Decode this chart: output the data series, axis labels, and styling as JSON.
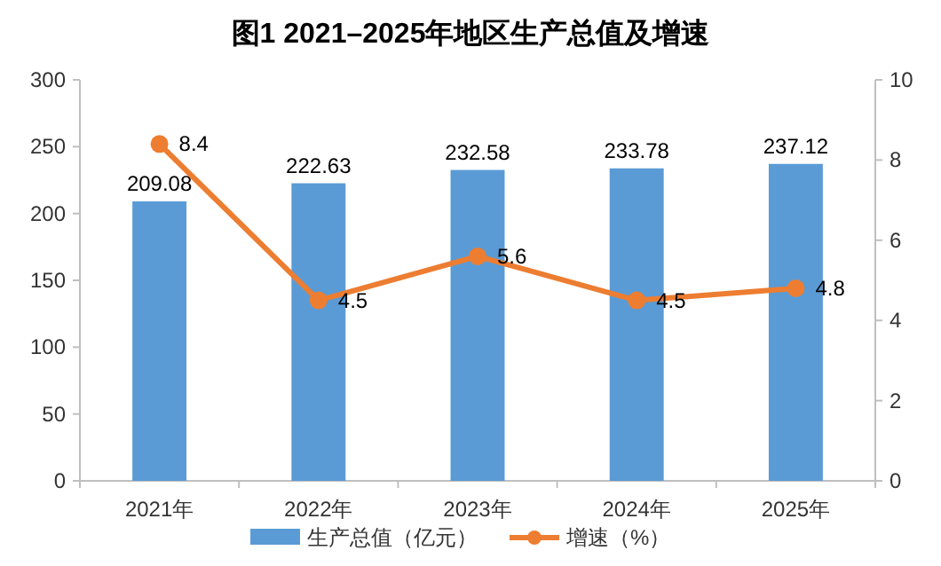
{
  "chart_data": {
    "type": "bar",
    "title": "图1 2021–2025年地区生产总值及增速",
    "categories": [
      "2021年",
      "2022年",
      "2023年",
      "2024年",
      "2025年"
    ],
    "series": [
      {
        "name": "生产总值（亿元）",
        "color": "#5b9bd5",
        "values": [
          209.08,
          222.63,
          232.58,
          233.78,
          237.12
        ]
      },
      {
        "name": "增速（%）",
        "type": "line",
        "axis": "y2",
        "color": "#ed7d31",
        "marker": "circle",
        "values": [
          8.4,
          4.5,
          5.6,
          4.5,
          4.8
        ]
      }
    ],
    "ylim": [
      0,
      300
    ],
    "yticks": [
      0,
      50,
      100,
      150,
      200,
      250,
      300
    ],
    "y2lim": [
      0,
      10
    ],
    "y2ticks": [
      0,
      2,
      4,
      6,
      8,
      10
    ],
    "grid": false,
    "legend": "bottom",
    "data_labels": true
  }
}
